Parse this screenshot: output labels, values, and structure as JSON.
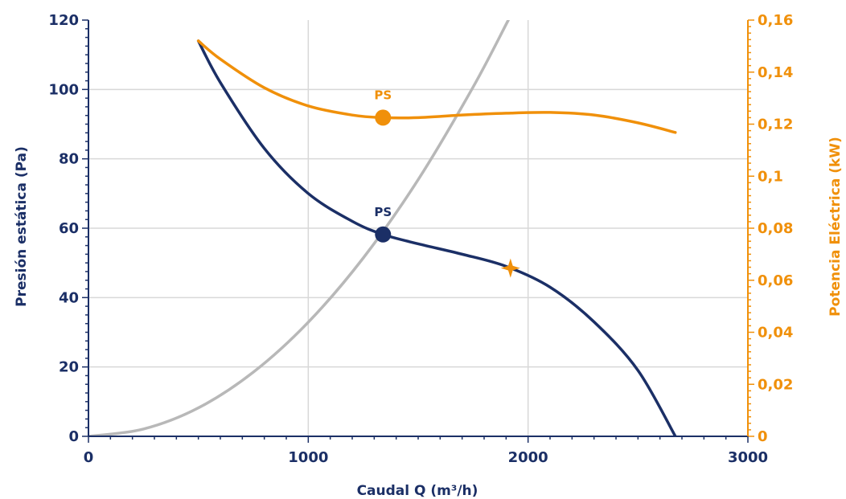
{
  "chart_data": {
    "type": "line",
    "xlabel": "Caudal Q (m³/h)",
    "ylabel": "Presión estática (Pa)",
    "y2label": "Potencia Eléctrica (kW)",
    "xlim": [
      0,
      3000
    ],
    "ylim": [
      0,
      120
    ],
    "y2lim": [
      0,
      0.16
    ],
    "x_ticks": [
      "0",
      "1000",
      "2000",
      "3000"
    ],
    "y_ticks": [
      "0",
      "20",
      "40",
      "60",
      "80",
      "100",
      "120"
    ],
    "y2_ticks": [
      "0",
      "0,02",
      "0,04",
      "0,06",
      "0,08",
      "0,1",
      "0,12",
      "0,14",
      "0,16"
    ],
    "grid": true,
    "colors": {
      "pressure": "#1b2f66",
      "power": "#f0900a",
      "system": "#b8b8b8",
      "grid": "#d8d8d8"
    },
    "series": [
      {
        "axis": "left",
        "color": "#1b2f66",
        "points": [
          [
            500,
            114
          ],
          [
            600,
            102
          ],
          [
            800,
            83
          ],
          [
            1000,
            70
          ],
          [
            1200,
            62
          ],
          [
            1340,
            58.2
          ],
          [
            1500,
            55.5
          ],
          [
            1700,
            52.5
          ],
          [
            1900,
            49
          ],
          [
            2100,
            43
          ],
          [
            2300,
            33
          ],
          [
            2500,
            19
          ],
          [
            2670,
            0
          ]
        ]
      },
      {
        "axis": "right",
        "color": "#f0900a",
        "points": [
          [
            500,
            0.152
          ],
          [
            600,
            0.145
          ],
          [
            800,
            0.134
          ],
          [
            1000,
            0.127
          ],
          [
            1200,
            0.1235
          ],
          [
            1340,
            0.1225
          ],
          [
            1500,
            0.1225
          ],
          [
            1700,
            0.1235
          ],
          [
            1900,
            0.1242
          ],
          [
            2100,
            0.1245
          ],
          [
            2300,
            0.1235
          ],
          [
            2500,
            0.1205
          ],
          [
            2670,
            0.1168
          ]
        ]
      },
      {
        "axis": "left",
        "color": "#b8b8b8",
        "points": [
          [
            0,
            0
          ],
          [
            250,
            2.1
          ],
          [
            500,
            8.2
          ],
          [
            750,
            18.5
          ],
          [
            1000,
            32.9
          ],
          [
            1250,
            51.4
          ],
          [
            1500,
            74
          ],
          [
            1750,
            100.7
          ],
          [
            1910,
            120
          ]
        ]
      }
    ],
    "markers": [
      {
        "series": 0,
        "x": 1340,
        "y": 58.2,
        "label": "PS",
        "shape": "circle",
        "color": "#1b2f66"
      },
      {
        "series": 1,
        "x": 1340,
        "y": 0.1225,
        "label": "PS",
        "shape": "circle",
        "color": "#f0900a"
      },
      {
        "series": 0,
        "x": 1920,
        "y": 48.5,
        "label": "",
        "shape": "star",
        "color": "#f0900a"
      }
    ]
  }
}
